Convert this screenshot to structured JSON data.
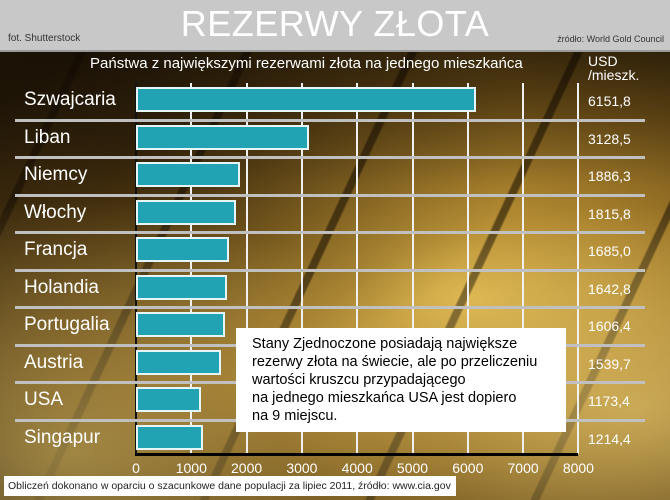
{
  "header": {
    "title": "REZERWY ZŁOTA",
    "photo_credit": "fot. Shutterstock",
    "source": "źródło: World Gold Council"
  },
  "chart": {
    "subtitle": "Państwa z największymi rezerwami złota na jednego mieszkańca",
    "unit_line1": "USD",
    "unit_line2": "/mieszk."
  },
  "note": {
    "lines": [
      "Stany Zjednoczone posiadają największe",
      "rezerwy złota na świecie, ale po przeliczeniu",
      "wartości kruszcu przypadającego",
      "na jednego mieszkańca USA jest dopiero",
      "na 9 miejscu."
    ]
  },
  "footer": {
    "text": "Obliczeń dokonano w oparciu o szacunkowe dane populacji za lipiec 2011, źródło: www.cia.gov"
  },
  "colors": {
    "bar": "#21a3b3",
    "header_bg": "#c8c8c8",
    "text": "#ffffff"
  },
  "chart_data": {
    "type": "bar",
    "orientation": "horizontal",
    "title": "REZERWY ZŁOTA",
    "subtitle": "Państwa z największymi rezerwami złota na jednego mieszkańca",
    "xlabel": "",
    "ylabel": "",
    "unit": "USD/mieszk.",
    "categories": [
      "Szwajcaria",
      "Liban",
      "Niemcy",
      "Włochy",
      "Francja",
      "Holandia",
      "Portugalia",
      "Austria",
      "USA",
      "Singapur"
    ],
    "values": [
      6151.8,
      3128.5,
      1886.3,
      1815.8,
      1685.0,
      1642.8,
      1606.4,
      1539.7,
      1173.4,
      1214.4
    ],
    "value_labels": [
      "6151,8",
      "3128,5",
      "1886,3",
      "1815,8",
      "1685,0",
      "1642,8",
      "1606,4",
      "1539,7",
      "1173,4",
      "1214,4"
    ],
    "xlim": [
      0,
      8000
    ],
    "xticks": [
      "0",
      "1000",
      "2000",
      "3000",
      "4000",
      "5000",
      "6000",
      "7000",
      "8000"
    ],
    "grid": true,
    "legend": "none"
  }
}
